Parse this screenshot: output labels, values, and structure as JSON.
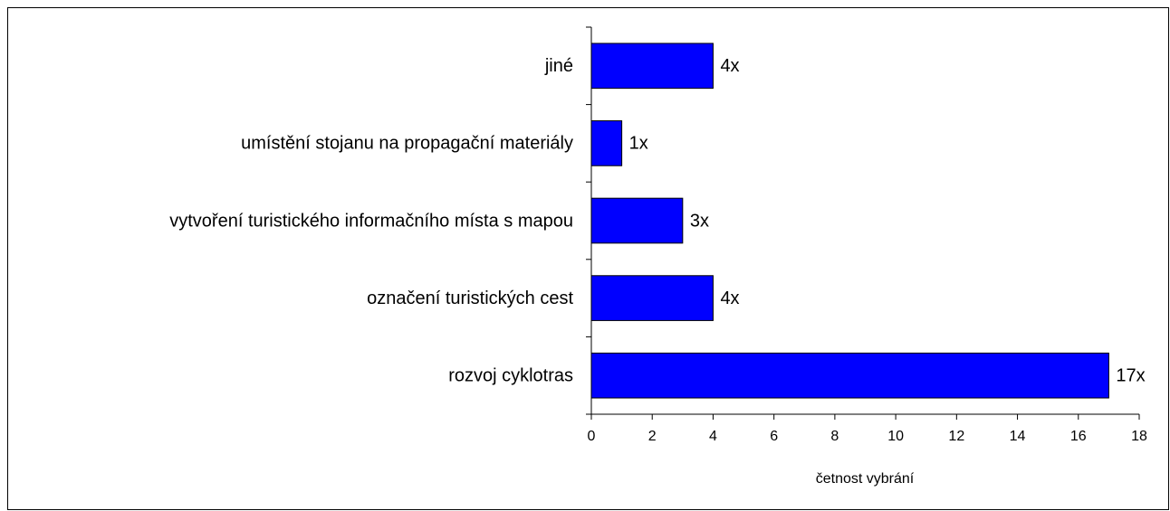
{
  "chart_data": {
    "type": "bar",
    "orientation": "horizontal",
    "categories": [
      "jiné",
      "umístění stojanu na propagační materiály",
      "vytvoření turistického informačního místa s mapou",
      "označení turistických cest",
      "rozvoj cyklotras"
    ],
    "values": [
      4,
      1,
      3,
      4,
      17
    ],
    "value_labels": [
      "4x",
      "1x",
      "3x",
      "4x",
      "17x"
    ],
    "color": "#0000ff",
    "xlabel": "četnost vybrání",
    "xlim": [
      0,
      18
    ],
    "xticks": [
      0,
      2,
      4,
      6,
      8,
      10,
      12,
      14,
      16,
      18
    ],
    "grid": false
  }
}
